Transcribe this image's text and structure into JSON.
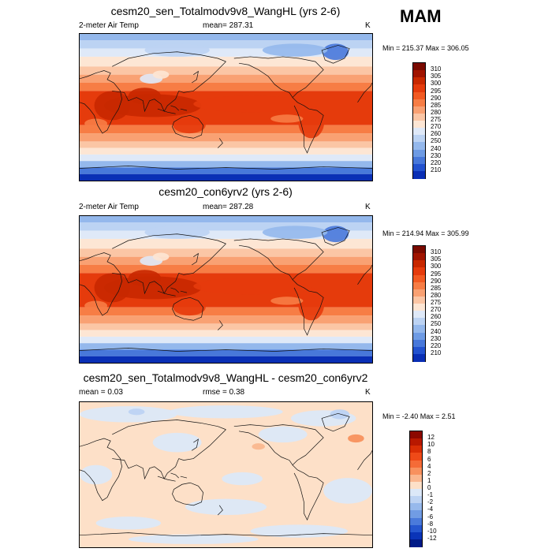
{
  "season": "MAM",
  "panels": [
    {
      "title": "cesm20_sen_Totalmodv9v8_WangHL (yrs 2-6)",
      "left_label": "2-meter Air Temp",
      "center_label": "mean= 287.31",
      "units": "K",
      "minmax": "Min = 215.37 Max = 306.05",
      "field": "abs"
    },
    {
      "title": "cesm20_con6yrv2 (yrs 2-6)",
      "left_label": "2-meter Air Temp",
      "center_label": "mean= 287.28",
      "units": "K",
      "minmax": "Min = 214.94 Max = 305.99",
      "field": "abs"
    },
    {
      "title": "cesm20_sen_Totalmodv9v8_WangHL - cesm20_con6yrv2",
      "left_label": "mean =   0.03",
      "center_label": "rmse =   0.38",
      "units": "K",
      "minmax": "Min =  -2.40 Max =   2.51",
      "field": "diff"
    }
  ],
  "colorbars": {
    "abs": {
      "labels": [
        "310",
        "305",
        "300",
        "295",
        "290",
        "285",
        "280",
        "275",
        "270",
        "260",
        "250",
        "240",
        "230",
        "220",
        "210"
      ],
      "colors": [
        "#7a0a00",
        "#a01400",
        "#c82800",
        "#e53b0c",
        "#f25a22",
        "#f77d45",
        "#f9a173",
        "#fbc6a5",
        "#fde6d4",
        "#dfe9f8",
        "#bcd3f3",
        "#94b8ec",
        "#6e9be4",
        "#4878da",
        "#2352cf",
        "#0a2fb5"
      ]
    },
    "diff": {
      "labels": [
        "12",
        "10",
        "8",
        "6",
        "4",
        "2",
        "1",
        "0",
        "-1",
        "-2",
        "-4",
        "-6",
        "-8",
        "-10",
        "-12"
      ],
      "colors": [
        "#8c0800",
        "#b81800",
        "#d92e05",
        "#ef4a18",
        "#f56b37",
        "#f8915e",
        "#fab78f",
        "#fde0c8",
        "#dce8f8",
        "#bdd3f3",
        "#97b9ec",
        "#719ce4",
        "#4a7adb",
        "#2556cf",
        "#0a34b8",
        "#001a88"
      ]
    }
  }
}
